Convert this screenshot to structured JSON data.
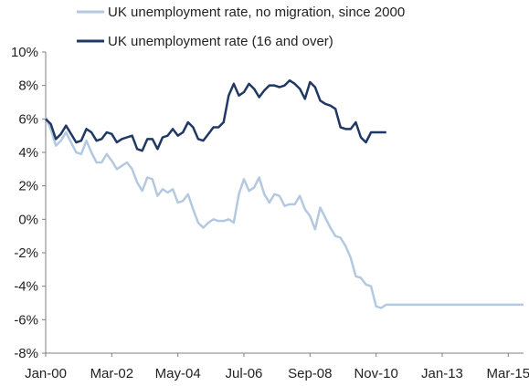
{
  "chart_data": {
    "type": "line",
    "title": "",
    "xlabel": "",
    "ylabel": "",
    "ylim": [
      -8,
      10
    ],
    "yticks": [
      "10%",
      "8%",
      "6%",
      "4%",
      "2%",
      "0%",
      "-2%",
      "-4%",
      "-6%",
      "-8%"
    ],
    "ytick_values": [
      10,
      8,
      6,
      4,
      2,
      0,
      -2,
      -4,
      -6,
      -8
    ],
    "xticks": [
      "Jan-00",
      "Mar-02",
      "May-04",
      "Jul-06",
      "Sep-08",
      "Nov-10",
      "Jan-13",
      "Mar-15"
    ],
    "xtick_values": [
      0,
      26,
      52,
      78,
      104,
      130,
      156,
      182
    ],
    "x_unit_note": "months",
    "grid": false,
    "legend": "top-left",
    "series": [
      {
        "name": "UK unemployment rate, no migration, since 2000",
        "color": "#b4c9e0",
        "x": [
          0,
          2,
          4,
          6,
          8,
          10,
          12,
          14,
          16,
          18,
          20,
          22,
          24,
          26,
          28,
          30,
          32,
          34,
          36,
          38,
          40,
          42,
          44,
          46,
          48,
          50,
          52,
          54,
          56,
          58,
          60,
          62,
          64,
          66,
          68,
          70,
          72,
          74,
          76,
          78,
          80,
          82,
          84,
          86,
          88,
          90,
          92,
          94,
          96,
          98,
          100,
          102,
          104,
          106,
          108,
          110,
          112,
          114,
          116,
          118,
          120,
          122,
          124,
          126,
          128,
          130,
          132,
          134,
          136,
          138,
          140,
          142,
          144,
          146,
          148,
          150,
          152,
          154,
          156,
          158,
          160,
          162,
          164,
          166,
          168,
          170,
          172,
          174,
          176,
          178,
          180,
          182,
          184,
          186,
          188
        ],
        "values": [
          6.1,
          5.4,
          4.4,
          4.7,
          5.2,
          4.6,
          4.0,
          3.9,
          4.7,
          4.0,
          3.4,
          3.4,
          3.9,
          3.5,
          3.0,
          3.2,
          3.4,
          3.0,
          2.2,
          1.7,
          2.5,
          2.4,
          1.4,
          1.8,
          1.6,
          1.8,
          1.0,
          1.1,
          1.5,
          0.6,
          -0.2,
          -0.5,
          -0.2,
          0.0,
          -0.1,
          -0.1,
          0.0,
          -0.2,
          1.5,
          2.4,
          1.7,
          1.9,
          2.5,
          1.5,
          1.0,
          1.5,
          1.4,
          0.8,
          0.9,
          0.9,
          1.4,
          0.6,
          0.2,
          -0.6,
          0.7,
          0.1,
          -0.5,
          -1.0,
          -1.1,
          -1.6,
          -2.3,
          -3.4,
          -3.5,
          -3.9,
          -4.0,
          -5.2,
          -5.3,
          -5.1,
          -5.1,
          -5.1,
          -5.1,
          -5.1,
          -5.1,
          -5.1,
          -5.1,
          -5.1,
          -5.1,
          -5.1,
          -5.1,
          -5.1,
          -5.1,
          -5.1,
          -5.1,
          -5.1,
          -5.1,
          -5.1,
          -5.1,
          -5.1,
          -5.1,
          -5.1,
          -5.1,
          -5.1,
          -5.1,
          -5.1,
          -5.1
        ]
      },
      {
        "name": "UK unemployment rate (16 and over)",
        "color": "#1f3864",
        "x": [
          0,
          2,
          4,
          6,
          8,
          10,
          12,
          14,
          16,
          18,
          20,
          22,
          24,
          26,
          28,
          30,
          32,
          34,
          36,
          38,
          40,
          42,
          44,
          46,
          48,
          50,
          52,
          54,
          56,
          58,
          60,
          62,
          64,
          66,
          68,
          70,
          72,
          74,
          76,
          78,
          80,
          82,
          84,
          86,
          88,
          90,
          92,
          94,
          96,
          98,
          100,
          102,
          104,
          106,
          108,
          110,
          112,
          114,
          116,
          118,
          120,
          122,
          124,
          126,
          128,
          130,
          132,
          134
        ],
        "values": [
          6.0,
          5.7,
          4.8,
          5.1,
          5.6,
          5.1,
          4.6,
          4.7,
          5.4,
          5.2,
          4.7,
          4.8,
          5.2,
          5.1,
          4.6,
          4.8,
          4.9,
          5.0,
          4.2,
          4.1,
          4.8,
          4.8,
          4.2,
          4.9,
          5.0,
          5.4,
          5.0,
          5.2,
          5.8,
          5.5,
          4.8,
          4.7,
          5.1,
          5.5,
          5.5,
          5.8,
          7.4,
          8.1,
          7.4,
          7.6,
          8.1,
          7.8,
          7.3,
          7.7,
          8.0,
          8.0,
          7.9,
          8.0,
          8.3,
          8.1,
          7.8,
          7.2,
          8.2,
          7.9,
          7.1,
          6.9,
          6.8,
          6.6,
          5.5,
          5.4,
          5.4,
          5.8,
          4.9,
          4.6,
          5.2,
          5.2,
          5.2,
          5.2
        ]
      }
    ]
  }
}
